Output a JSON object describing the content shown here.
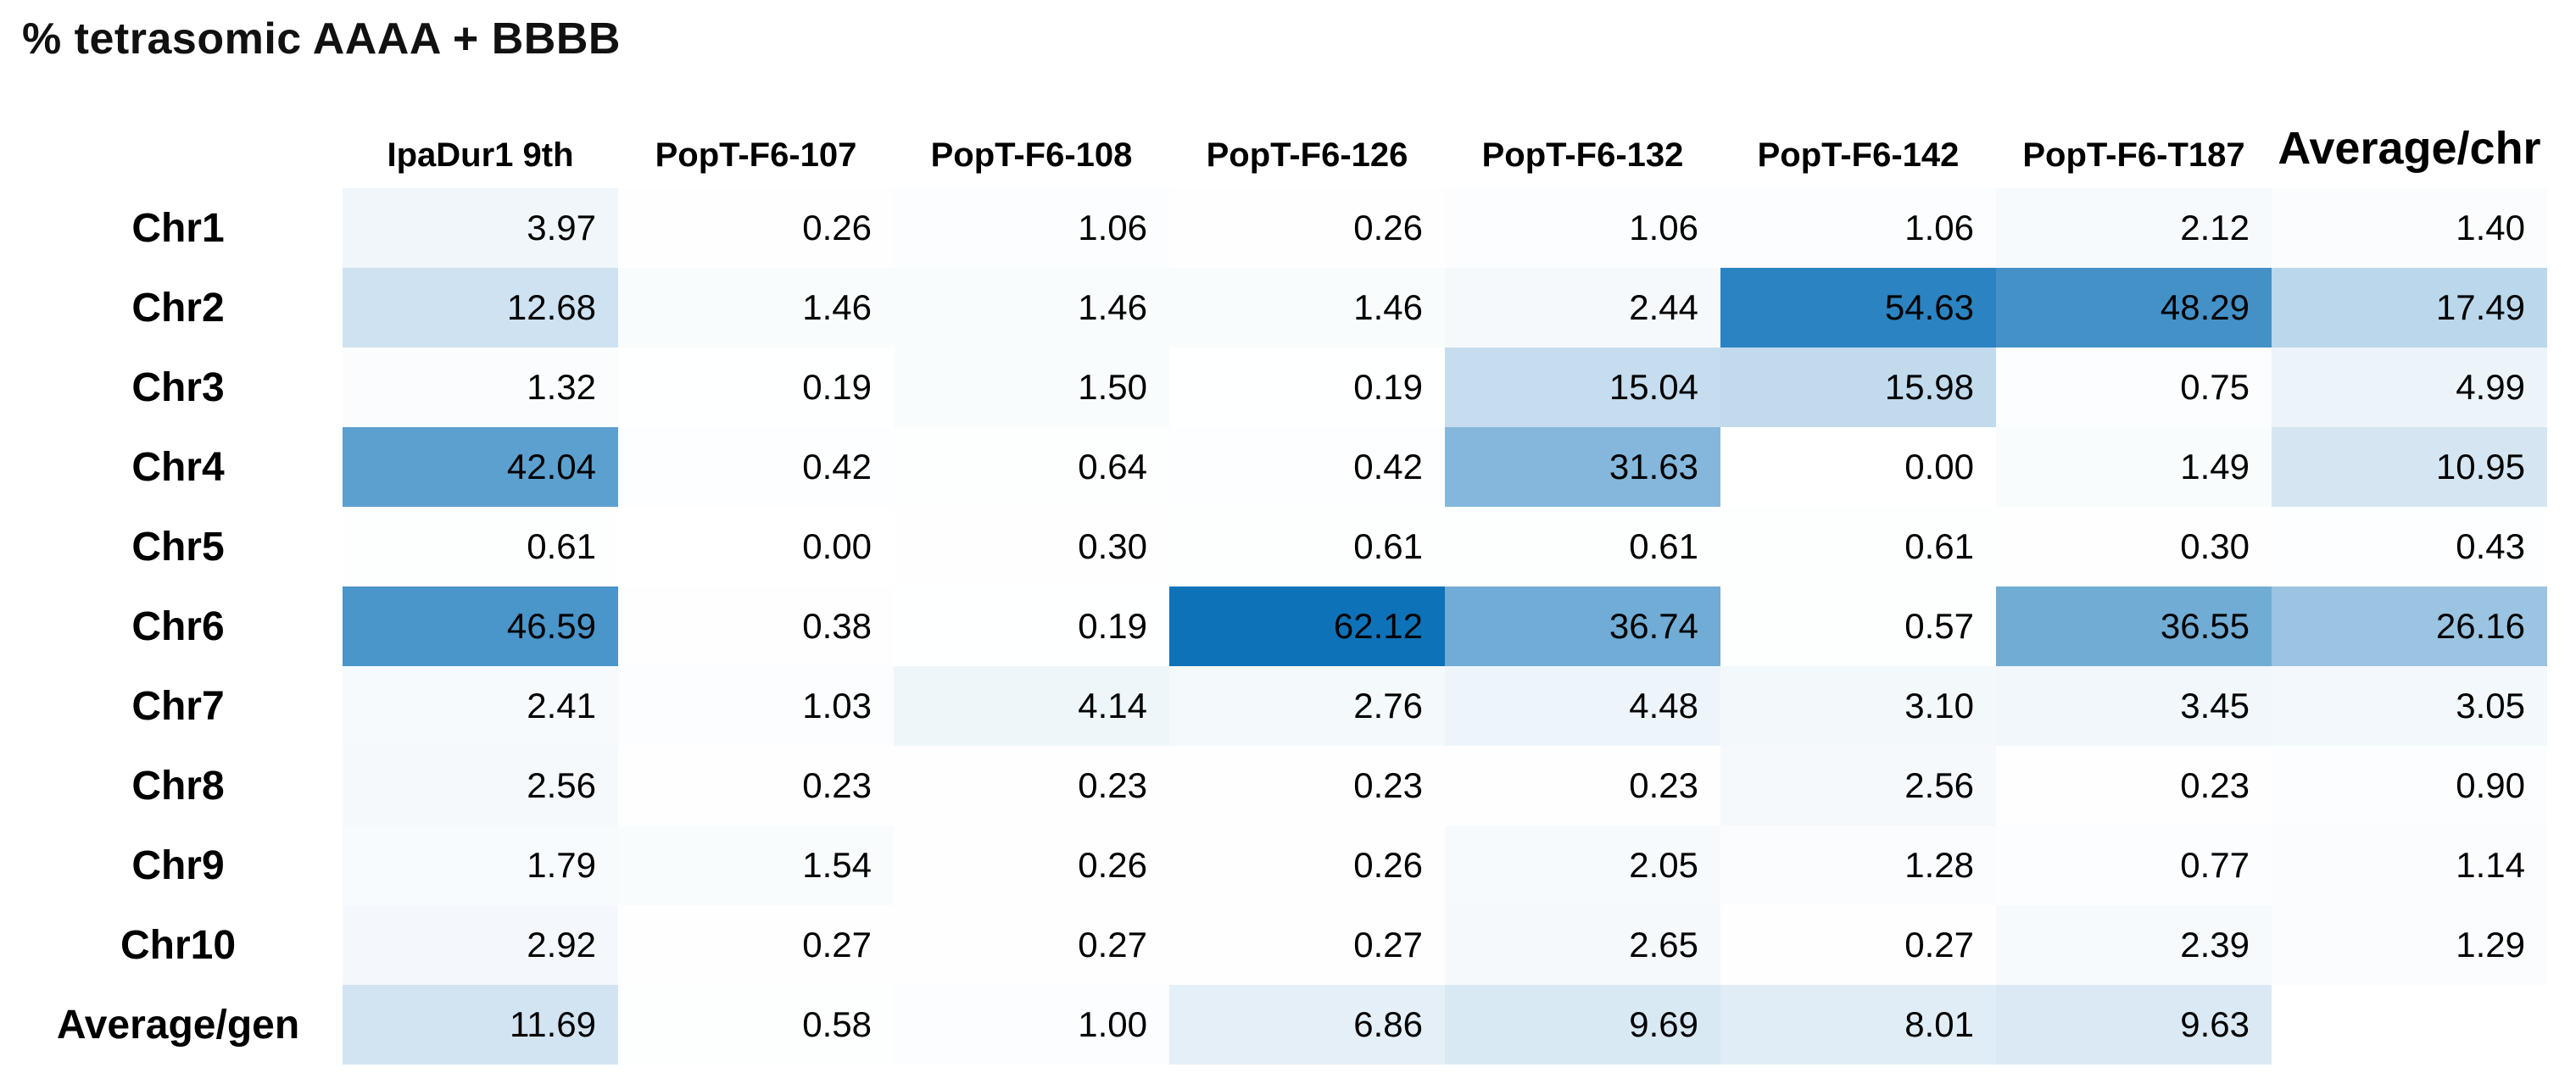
{
  "chart_data": {
    "type": "heatmap",
    "title": "% tetrasomic AAAA + BBBB",
    "columns": [
      "IpaDur1 9th",
      "PopT-F6-107",
      "PopT-F6-108",
      "PopT-F6-126",
      "PopT-F6-132",
      "PopT-F6-142",
      "PopT-F6-T187",
      "Average/chr"
    ],
    "rows": [
      "Chr1",
      "Chr2",
      "Chr3",
      "Chr4",
      "Chr5",
      "Chr6",
      "Chr7",
      "Chr8",
      "Chr9",
      "Chr10",
      "Average/gen"
    ],
    "values": [
      [
        3.97,
        0.26,
        1.06,
        0.26,
        1.06,
        1.06,
        2.12,
        1.4
      ],
      [
        12.68,
        1.46,
        1.46,
        1.46,
        2.44,
        54.63,
        48.29,
        17.49
      ],
      [
        1.32,
        0.19,
        1.5,
        0.19,
        15.04,
        15.98,
        0.75,
        4.99
      ],
      [
        42.04,
        0.42,
        0.64,
        0.42,
        31.63,
        0.0,
        1.49,
        10.95
      ],
      [
        0.61,
        0.0,
        0.3,
        0.61,
        0.61,
        0.61,
        0.3,
        0.43
      ],
      [
        46.59,
        0.38,
        0.19,
        62.12,
        36.74,
        0.57,
        36.55,
        26.16
      ],
      [
        2.41,
        1.03,
        4.14,
        2.76,
        4.48,
        3.1,
        3.45,
        3.05
      ],
      [
        2.56,
        0.23,
        0.23,
        0.23,
        0.23,
        2.56,
        0.23,
        0.9
      ],
      [
        1.79,
        1.54,
        0.26,
        0.26,
        2.05,
        1.28,
        0.77,
        1.14
      ],
      [
        2.92,
        0.27,
        0.27,
        0.27,
        2.65,
        0.27,
        2.39,
        1.29
      ],
      [
        11.69,
        0.58,
        1.0,
        6.86,
        9.69,
        8.01,
        9.63,
        null
      ]
    ],
    "color_scale": {
      "min_value": 0,
      "max_value": 62.12,
      "min_color": "#FFFFFF",
      "max_color": "#0E72B8"
    },
    "value_decimals": 2,
    "layout": {
      "grid": "off",
      "legend": "none",
      "row_label_style": "bold",
      "column_header_style": "bold"
    }
  }
}
